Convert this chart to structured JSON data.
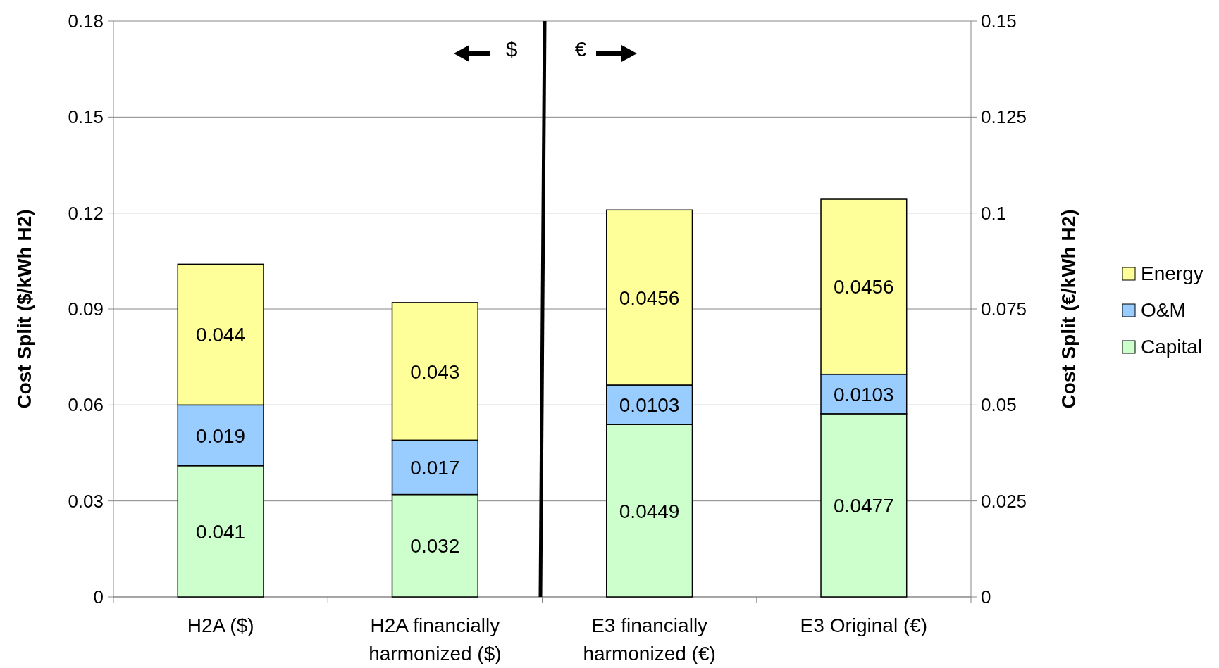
{
  "chart_data": {
    "type": "bar",
    "stacked": true,
    "categories": [
      "H2A ($)",
      "H2A financially harmonized ($)",
      "E3 financially harmonized (€)",
      "E3 Original (€)"
    ],
    "series": [
      {
        "name": "Capital",
        "color": "#ccffcc",
        "values": [
          0.041,
          0.032,
          null,
          null
        ]
      },
      {
        "name": "O&M",
        "color": "#99ccff",
        "values": [
          0.019,
          0.017,
          null,
          null
        ]
      },
      {
        "name": "Energy",
        "color": "#ffff99",
        "values": [
          0.044,
          0.043,
          null,
          null
        ]
      },
      {
        "color": "#ccffcc",
        "axis": "y2",
        "values": [
          null,
          null,
          0.0449,
          0.0477
        ]
      },
      {
        "color": "#99ccff",
        "axis": "y2",
        "values": [
          null,
          null,
          0.0103,
          0.0103
        ]
      },
      {
        "color": "#ffff99",
        "axis": "y2",
        "values": [
          null,
          null,
          0.0456,
          0.0456
        ]
      }
    ],
    "ylabel": "Cost Split ($/kWh H2)",
    "y2label": "Cost Split (€/kWh H2)",
    "ylim": [
      0,
      0.18
    ],
    "yticks": [
      0,
      0.03,
      0.06,
      0.09,
      0.12,
      0.15,
      0.18
    ],
    "y2lim": [
      0,
      0.15
    ],
    "y2ticks": [
      0,
      0.025,
      0.05,
      0.075,
      0.1,
      0.125,
      0.15
    ],
    "annotations": [
      "$",
      "€"
    ],
    "data_labels": true,
    "grid": "y",
    "legend": "right"
  }
}
